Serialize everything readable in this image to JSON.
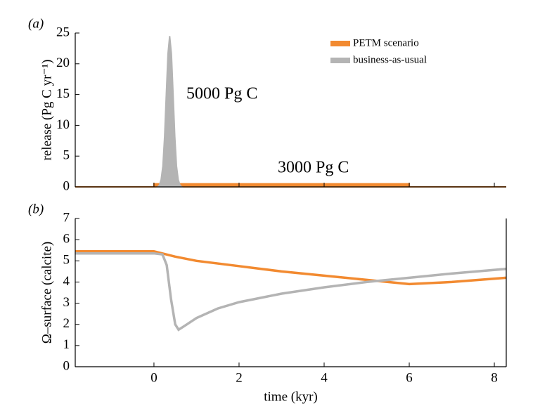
{
  "chart_data": [
    {
      "type": "area",
      "panel_label": "(a)",
      "ylabel": "release (Pg C yr⁻¹)",
      "xlim": [
        -1.85,
        8.28
      ],
      "xticks": [
        0,
        2,
        4,
        6,
        8
      ],
      "ylim": [
        0,
        25
      ],
      "yticks": [
        0,
        5,
        10,
        15,
        20,
        25
      ],
      "legend": "upper right",
      "annotations": [
        {
          "text": "5000 Pg C",
          "color": "#b4b4b4"
        },
        {
          "text": "3000 Pg C",
          "color": "#f28a30"
        }
      ],
      "series": [
        {
          "name": "PETM scenario",
          "color": "#f28a30",
          "x": [
            -1.85,
            0,
            0,
            6,
            6,
            8.28
          ],
          "values": [
            0,
            0,
            0.5,
            0.5,
            0,
            0
          ]
        },
        {
          "name": "business-as-usual",
          "color": "#b4b4b4",
          "x": [
            0.09,
            0.13,
            0.17,
            0.21,
            0.25,
            0.29,
            0.33,
            0.37,
            0.41,
            0.45,
            0.49,
            0.53,
            0.57,
            0.61,
            0.65
          ],
          "values": [
            0,
            0.3,
            1.2,
            3.4,
            8.2,
            15,
            21.6,
            24.5,
            21.6,
            15,
            8.2,
            3.4,
            1.2,
            0.3,
            0
          ]
        }
      ]
    },
    {
      "type": "line",
      "panel_label": "(b)",
      "ylabel": "Ω–surface (calcite)",
      "xlabel": "time (kyr)",
      "xlim": [
        -1.85,
        8.28
      ],
      "xticks": [
        0,
        2,
        4,
        6,
        8
      ],
      "ylim": [
        0,
        7
      ],
      "yticks": [
        0,
        1,
        2,
        3,
        4,
        5,
        6,
        7
      ],
      "series": [
        {
          "name": "PETM scenario",
          "color": "#f28a30",
          "x": [
            -1.85,
            0,
            0.5,
            1,
            2,
            3,
            4,
            5,
            6,
            7,
            8.28
          ],
          "values": [
            5.45,
            5.45,
            5.2,
            5.0,
            4.75,
            4.5,
            4.3,
            4.1,
            3.9,
            4.0,
            4.2
          ]
        },
        {
          "name": "business-as-usual",
          "color": "#b4b4b4",
          "x": [
            -1.85,
            0,
            0.2,
            0.3,
            0.4,
            0.5,
            0.58,
            0.7,
            1,
            1.5,
            2,
            3,
            4,
            5,
            6,
            7,
            8.28
          ],
          "values": [
            5.35,
            5.35,
            5.3,
            4.8,
            3.2,
            2.0,
            1.75,
            1.9,
            2.3,
            2.75,
            3.05,
            3.45,
            3.75,
            4.0,
            4.2,
            4.4,
            4.62
          ]
        }
      ]
    }
  ]
}
